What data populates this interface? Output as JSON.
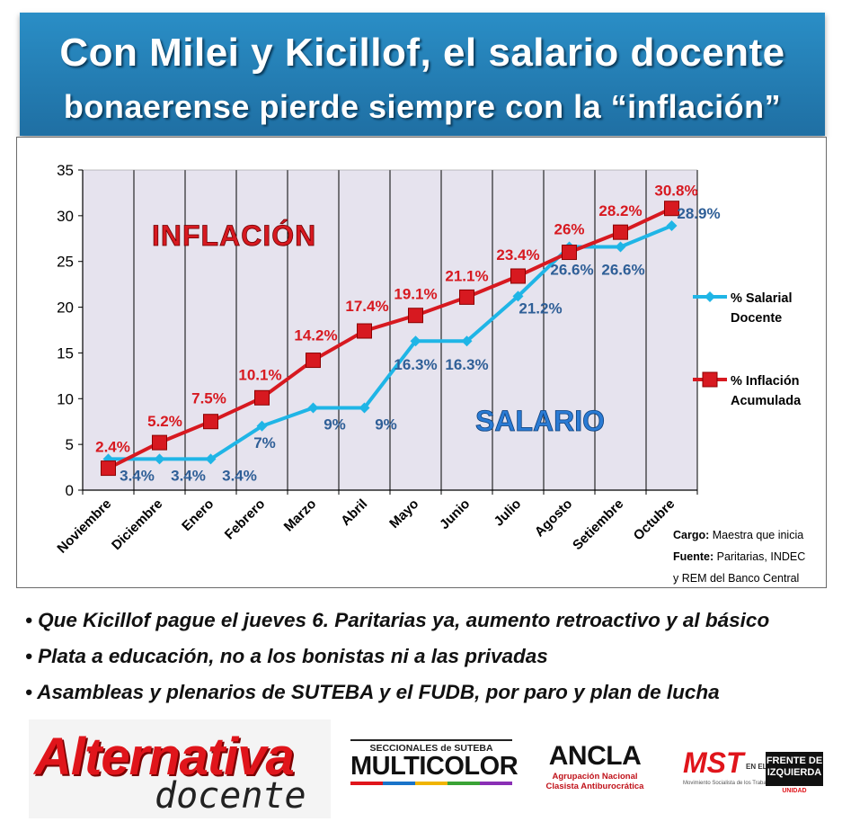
{
  "header": {
    "title_line1": "Con Milei y Kicillof, el salario docente",
    "title_line2": "bonaerense pierde siempre con la “inflación”"
  },
  "colors": {
    "salary": "#1fb5e6",
    "inflation": "#d71920",
    "header_bg": "#2a8ec6",
    "plot_bg": "#e6e3ee"
  },
  "chart_data": {
    "type": "line",
    "categories": [
      "Noviembre",
      "Diciembre",
      "Enero",
      "Febrero",
      "Marzo",
      "Abril",
      "Mayo",
      "Junio",
      "Julio",
      "Agosto",
      "Setiembre",
      "Octubre"
    ],
    "ylim": [
      0,
      35
    ],
    "yticks": [
      0,
      5,
      10,
      15,
      20,
      25,
      30,
      35
    ],
    "grid": "vertical",
    "legend_position": "right",
    "series": [
      {
        "name": "% Salarial Docente",
        "values": [
          3.4,
          3.4,
          3.4,
          7,
          9,
          9,
          16.3,
          16.3,
          21.2,
          26.6,
          26.6,
          28.9
        ],
        "labels": [
          "3.4%",
          "3.4%",
          "3.4%",
          "7%",
          "9%",
          "9%",
          "16.3%",
          "16.3%",
          "21.2%",
          "26.6%",
          "26.6%",
          "28.9%"
        ]
      },
      {
        "name": "% Inflación Acumulada",
        "values": [
          2.4,
          5.2,
          7.5,
          10.1,
          14.2,
          17.4,
          19.1,
          21.1,
          23.4,
          26,
          28.2,
          30.8
        ],
        "labels": [
          "2.4%",
          "5.2%",
          "7.5%",
          "10.1%",
          "14.2%",
          "17.4%",
          "19.1%",
          "21.1%",
          "23.4%",
          "26%",
          "28.2%",
          "30.8%"
        ]
      }
    ],
    "annotations": {
      "inflation_word": "INFLACIÓN",
      "salary_word": "SALARIO"
    },
    "legend": {
      "salary_line1": "% Salarial",
      "salary_line2": "Docente",
      "inflation_line1": "% Inflación",
      "inflation_line2": "Acumulada"
    },
    "source_note": {
      "cargo_label": "Cargo:",
      "cargo_value": "Maestra que inicia",
      "fuente_label": "Fuente:",
      "fuente_value": "Paritarias, INDEC",
      "fuente_value2": "y REM del Banco Central"
    }
  },
  "bullets": [
    "• Que Kicillof pague el jueves 6. Paritarias ya, aumento retroactivo y al básico",
    "• Plata a educación, no a los bonistas ni a las privadas",
    "• Asambleas y plenarios de SUTEBA y el FUDB, por paro y plan de lucha"
  ],
  "logos": {
    "alternativa_word": "Alternativa",
    "alternativa_docente": "docente",
    "multicolor_top": "SECCIONALES de SUTEBA",
    "multicolor_main": "MULTICOLOR",
    "ancla_main": "ANCLA",
    "ancla_sub1": "Agrupación Nacional",
    "ancla_sub2": "Clasista Antiburocrática",
    "mst_word": "MST",
    "mst_en": "EN EL",
    "mst_sub": "Movimiento Socialista de los Trabajadores",
    "frente_line1": "FRENTE DE",
    "frente_line2": "IZQUIERDA",
    "frente_unidad": "UNIDAD"
  }
}
